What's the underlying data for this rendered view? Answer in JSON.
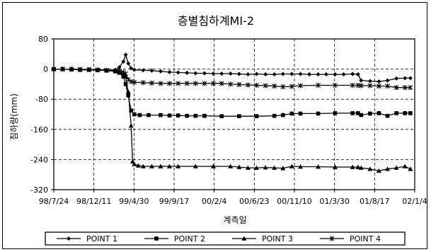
{
  "chart_data": {
    "type": "line",
    "title": "층별침하계MI-2",
    "xlabel": "계측일",
    "ylabel": "침하량(mm)",
    "x_tick_labels": [
      "98/7/24",
      "98/12/11",
      "99/4/30",
      "99/9/17",
      "00/2/4",
      "00/6/23",
      "00/11/10",
      "01/3/30",
      "01/8/17",
      "02/1/4"
    ],
    "xlim": [
      "98/7/24",
      "02/1/4"
    ],
    "ylim": [
      -320,
      80
    ],
    "y_ticks": [
      80,
      0,
      -80,
      -160,
      -240,
      -320
    ],
    "grid": "dashed",
    "legend_position": "bottom",
    "series": [
      {
        "name": "POINT 1",
        "marker": "diamond",
        "points": [
          [
            "98/7/24",
            0
          ],
          [
            "98/8/24",
            0
          ],
          [
            "98/9/24",
            0
          ],
          [
            "98/10/24",
            -1
          ],
          [
            "98/11/24",
            -1
          ],
          [
            "98/12/24",
            -2
          ],
          [
            "99/1/24",
            -3
          ],
          [
            "99/2/24",
            -2
          ],
          [
            "99/3/10",
            5
          ],
          [
            "99/3/24",
            20
          ],
          [
            "99/4/1",
            38
          ],
          [
            "99/4/10",
            15
          ],
          [
            "99/4/20",
            2
          ],
          [
            "99/5/1",
            -2
          ],
          [
            "99/6/1",
            -3
          ],
          [
            "99/7/1",
            -4
          ],
          [
            "99/8/1",
            -6
          ],
          [
            "99/9/1",
            -8
          ],
          [
            "99/10/1",
            -9
          ],
          [
            "99/11/1",
            -10
          ],
          [
            "99/12/1",
            -11
          ],
          [
            "00/1/1",
            -11
          ],
          [
            "00/2/1",
            -12
          ],
          [
            "00/3/1",
            -12
          ],
          [
            "00/4/1",
            -12
          ],
          [
            "00/5/1",
            -13
          ],
          [
            "00/6/1",
            -14
          ],
          [
            "00/7/1",
            -13
          ],
          [
            "00/8/1",
            -14
          ],
          [
            "00/9/1",
            -14
          ],
          [
            "00/10/1",
            -13
          ],
          [
            "00/11/1",
            -13
          ],
          [
            "00/12/1",
            -13
          ],
          [
            "01/1/1",
            -14
          ],
          [
            "01/2/1",
            -14
          ],
          [
            "01/3/1",
            -14
          ],
          [
            "01/4/1",
            -14
          ],
          [
            "01/5/1",
            -14
          ],
          [
            "01/6/1",
            -13
          ],
          [
            "01/6/20",
            -14
          ],
          [
            "01/7/1",
            -30
          ],
          [
            "01/8/1",
            -32
          ],
          [
            "01/9/1",
            -33
          ],
          [
            "01/10/1",
            -30
          ],
          [
            "01/11/1",
            -25
          ],
          [
            "01/12/1",
            -24
          ],
          [
            "01/12/20",
            -24
          ]
        ]
      },
      {
        "name": "POINT 2",
        "marker": "square",
        "points": [
          [
            "98/7/24",
            0
          ],
          [
            "98/8/24",
            0
          ],
          [
            "98/9/24",
            -1
          ],
          [
            "98/10/24",
            -2
          ],
          [
            "98/11/24",
            -2
          ],
          [
            "98/12/24",
            -3
          ],
          [
            "99/1/24",
            -4
          ],
          [
            "99/2/24",
            -6
          ],
          [
            "99/3/10",
            -10
          ],
          [
            "99/3/24",
            -20
          ],
          [
            "99/4/1",
            -40
          ],
          [
            "99/4/10",
            -70
          ],
          [
            "99/4/20",
            -110
          ],
          [
            "99/5/1",
            -120
          ],
          [
            "99/5/20",
            -122
          ],
          [
            "99/6/20",
            -122
          ],
          [
            "99/8/1",
            -122
          ],
          [
            "99/9/1",
            -123
          ],
          [
            "99/10/1",
            -123
          ],
          [
            "99/11/1",
            -124
          ],
          [
            "99/12/1",
            -124
          ],
          [
            "00/1/1",
            -124
          ],
          [
            "00/3/1",
            -125
          ],
          [
            "00/5/1",
            -125
          ],
          [
            "00/7/1",
            -125
          ],
          [
            "00/9/1",
            -124
          ],
          [
            "00/10/1",
            -122
          ],
          [
            "00/11/1",
            -118
          ],
          [
            "00/12/1",
            -118
          ],
          [
            "01/2/1",
            -118
          ],
          [
            "01/4/1",
            -117
          ],
          [
            "01/6/1",
            -117
          ],
          [
            "01/6/20",
            -117
          ],
          [
            "01/7/1",
            -122
          ],
          [
            "01/8/1",
            -118
          ],
          [
            "01/9/1",
            -117
          ],
          [
            "01/10/1",
            -124
          ],
          [
            "01/11/1",
            -117
          ],
          [
            "01/12/1",
            -117
          ],
          [
            "01/12/20",
            -117
          ]
        ]
      },
      {
        "name": "POINT 3",
        "marker": "triangle",
        "points": [
          [
            "98/7/24",
            0
          ],
          [
            "98/8/24",
            0
          ],
          [
            "98/9/24",
            -1
          ],
          [
            "98/10/24",
            -1
          ],
          [
            "98/11/24",
            -2
          ],
          [
            "98/12/24",
            -2
          ],
          [
            "99/1/24",
            -3
          ],
          [
            "99/2/24",
            -4
          ],
          [
            "99/3/10",
            -5
          ],
          [
            "99/3/24",
            -10
          ],
          [
            "99/4/1",
            -20
          ],
          [
            "99/4/10",
            -60
          ],
          [
            "99/4/20",
            -150
          ],
          [
            "99/4/25",
            -245
          ],
          [
            "99/5/1",
            -252
          ],
          [
            "99/5/15",
            -256
          ],
          [
            "99/6/1",
            -258
          ],
          [
            "99/7/1",
            -258
          ],
          [
            "99/8/1",
            -258
          ],
          [
            "99/9/1",
            -258
          ],
          [
            "99/10/1",
            -258
          ],
          [
            "99/12/1",
            -258
          ],
          [
            "00/2/1",
            -258
          ],
          [
            "00/4/1",
            -258
          ],
          [
            "00/5/1",
            -260
          ],
          [
            "00/6/1",
            -262
          ],
          [
            "00/7/1",
            -262
          ],
          [
            "00/8/1",
            -261
          ],
          [
            "00/9/1",
            -262
          ],
          [
            "00/10/1",
            -263
          ],
          [
            "00/11/1",
            -258
          ],
          [
            "00/12/1",
            -259
          ],
          [
            "01/2/1",
            -259
          ],
          [
            "01/4/1",
            -260
          ],
          [
            "01/6/1",
            -260
          ],
          [
            "01/6/20",
            -260
          ],
          [
            "01/7/1",
            -262
          ],
          [
            "01/8/1",
            -265
          ],
          [
            "01/9/1",
            -270
          ],
          [
            "01/10/1",
            -265
          ],
          [
            "01/11/1",
            -262
          ],
          [
            "01/12/1",
            -258
          ],
          [
            "01/12/20",
            -265
          ]
        ]
      },
      {
        "name": "POINT 4",
        "marker": "asterisk",
        "points": [
          [
            "98/7/24",
            0
          ],
          [
            "98/8/24",
            0
          ],
          [
            "98/9/24",
            0
          ],
          [
            "98/10/24",
            -1
          ],
          [
            "98/11/24",
            -1
          ],
          [
            "98/12/24",
            -2
          ],
          [
            "99/1/24",
            -3
          ],
          [
            "99/2/24",
            -5
          ],
          [
            "99/3/10",
            -6
          ],
          [
            "99/3/24",
            -8
          ],
          [
            "99/4/1",
            -12
          ],
          [
            "99/4/10",
            -28
          ],
          [
            "99/4/20",
            -33
          ],
          [
            "99/5/1",
            -35
          ],
          [
            "99/6/1",
            -36
          ],
          [
            "99/7/1",
            -37
          ],
          [
            "99/8/1",
            -38
          ],
          [
            "99/9/1",
            -38
          ],
          [
            "99/10/1",
            -38
          ],
          [
            "99/11/1",
            -38
          ],
          [
            "99/12/1",
            -38
          ],
          [
            "00/1/1",
            -38
          ],
          [
            "00/2/1",
            -38
          ],
          [
            "00/3/1",
            -38
          ],
          [
            "00/4/1",
            -40
          ],
          [
            "00/5/1",
            -41
          ],
          [
            "00/6/1",
            -42
          ],
          [
            "00/7/1",
            -43
          ],
          [
            "00/8/1",
            -44
          ],
          [
            "00/9/1",
            -45
          ],
          [
            "00/10/1",
            -47
          ],
          [
            "00/11/1",
            -46
          ],
          [
            "00/12/1",
            -44
          ],
          [
            "01/2/1",
            -43
          ],
          [
            "01/4/1",
            -43
          ],
          [
            "01/6/1",
            -43
          ],
          [
            "01/6/20",
            -43
          ],
          [
            "01/7/1",
            -44
          ],
          [
            "01/8/1",
            -44
          ],
          [
            "01/9/1",
            -45
          ],
          [
            "01/10/1",
            -45
          ],
          [
            "01/11/1",
            -49
          ],
          [
            "01/12/1",
            -49
          ],
          [
            "01/12/20",
            -49
          ]
        ]
      }
    ]
  }
}
